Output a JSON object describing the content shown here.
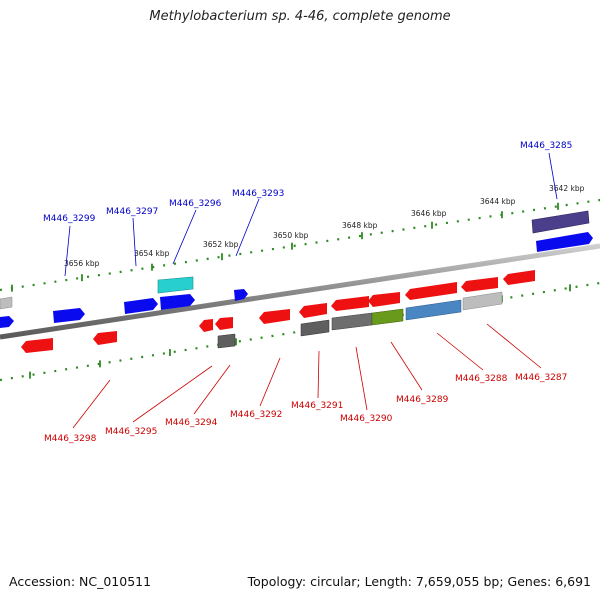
{
  "title": "Methylobacterium sp. 4-46, complete genome",
  "accession": "Accession: NC_010511",
  "summary": "Topology: circular; Length: 7,659,055 bp; Genes: 6,691",
  "colors": {
    "forward_label": "#0000cc",
    "reverse_label": "#cc0000",
    "tick": "#2e8b22",
    "backbone": "#8c8c8c"
  },
  "kbp_labels": [
    "3656 kbp",
    "3654 kbp",
    "3652 kbp",
    "3650 kbp",
    "3648 kbp",
    "3646 kbp",
    "3644 kbp",
    "3642 kbp"
  ],
  "forward_gene_labels": [
    "M446_3299",
    "M446_3297",
    "M446_3296",
    "M446_3293",
    "M446_3285"
  ],
  "reverse_gene_labels": [
    "M446_3298",
    "M446_3295",
    "M446_3294",
    "M446_3292",
    "M446_3291",
    "M446_3290",
    "M446_3289",
    "M446_3288",
    "M446_3287"
  ]
}
